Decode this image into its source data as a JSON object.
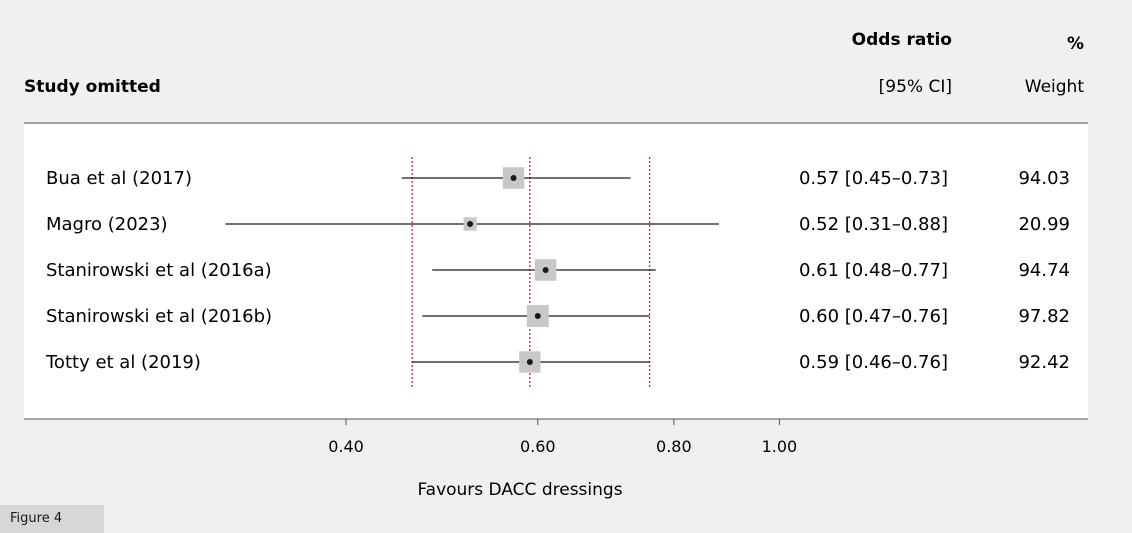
{
  "header": {
    "study_col": "Study omitted",
    "or_col_line1": "Odds ratio",
    "or_col_line2": "[95% CI]",
    "weight_col_line1": "%",
    "weight_col_line2": "Weight"
  },
  "figure_label": "Figure 4",
  "chart_data": {
    "type": "forest",
    "xlabel": "Favours DACC dressings",
    "x_scale": "log",
    "x_ticks": [
      0.4,
      0.6,
      0.8,
      1.0
    ],
    "x_tick_labels": [
      "0.40",
      "0.60",
      "0.80",
      "1.00"
    ],
    "reference_lines": {
      "overall": 0.59,
      "lower": 0.46,
      "upper": 0.76
    },
    "studies": [
      {
        "name": "Bua et al (2017)",
        "or": 0.57,
        "lower": 0.45,
        "upper": 0.73,
        "or_text": "0.57 [0.45–0.73]",
        "weight": 94.03,
        "weight_text": "94.03"
      },
      {
        "name": "Magro (2023)",
        "or": 0.52,
        "lower": 0.31,
        "upper": 0.88,
        "or_text": "0.52 [0.31–0.88]",
        "weight": 20.99,
        "weight_text": "20.99"
      },
      {
        "name": "Stanirowski et al (2016a)",
        "or": 0.61,
        "lower": 0.48,
        "upper": 0.77,
        "or_text": "0.61 [0.48–0.77]",
        "weight": 94.74,
        "weight_text": "94.74"
      },
      {
        "name": "Stanirowski et al (2016b)",
        "or": 0.6,
        "lower": 0.47,
        "upper": 0.76,
        "or_text": "0.60 [0.47–0.76]",
        "weight": 97.82,
        "weight_text": "97.82"
      },
      {
        "name": "Totty et al (2019)",
        "or": 0.59,
        "lower": 0.46,
        "upper": 0.76,
        "or_text": "0.59 [0.46–0.76]",
        "weight": 92.42,
        "weight_text": "92.42"
      }
    ],
    "colors": {
      "reference_line": "#cc2222",
      "box": "#c8c8c8",
      "line": "#1a1a1a",
      "panel": "#ffffff",
      "background": "#f0f0f0"
    }
  }
}
